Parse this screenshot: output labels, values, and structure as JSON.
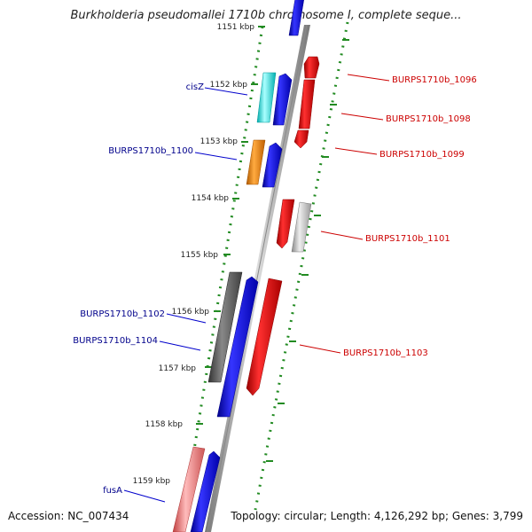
{
  "title": "Burkholderia pseudomallei 1710b chromosome I, complete seque...",
  "footer": {
    "accession": "Accession: NC_007434",
    "summary": "Topology: circular; Length: 4,126,292 bp; Genes: 3,799"
  },
  "ticks": [
    "1151 kbp",
    "1152 kbp",
    "1153 kbp",
    "1154 kbp",
    "1155 kbp",
    "1156 kbp",
    "1157 kbp",
    "1158 kbp",
    "1159 kbp"
  ],
  "labels_left": [
    "cisZ",
    "BURPS1710b_1100",
    "BURPS1710b_1102",
    "BURPS1710b_1104",
    "fusA"
  ],
  "labels_right": [
    "BURPS1710b_1096",
    "BURPS1710b_1098",
    "BURPS1710b_1099",
    "BURPS1710b_1101",
    "BURPS1710b_1103"
  ],
  "colors": {
    "left_label": "#00008b",
    "right_label": "#cc0000",
    "tick_mark": "#228b22",
    "backbone": "#999999",
    "blue": "#0000ee",
    "red": "#ee0000",
    "cyan": "#00e5e5",
    "orange": "#ff8c00",
    "gray": "#c0c0c0",
    "dark_gray": "#555555",
    "pink": "#ee7777"
  }
}
